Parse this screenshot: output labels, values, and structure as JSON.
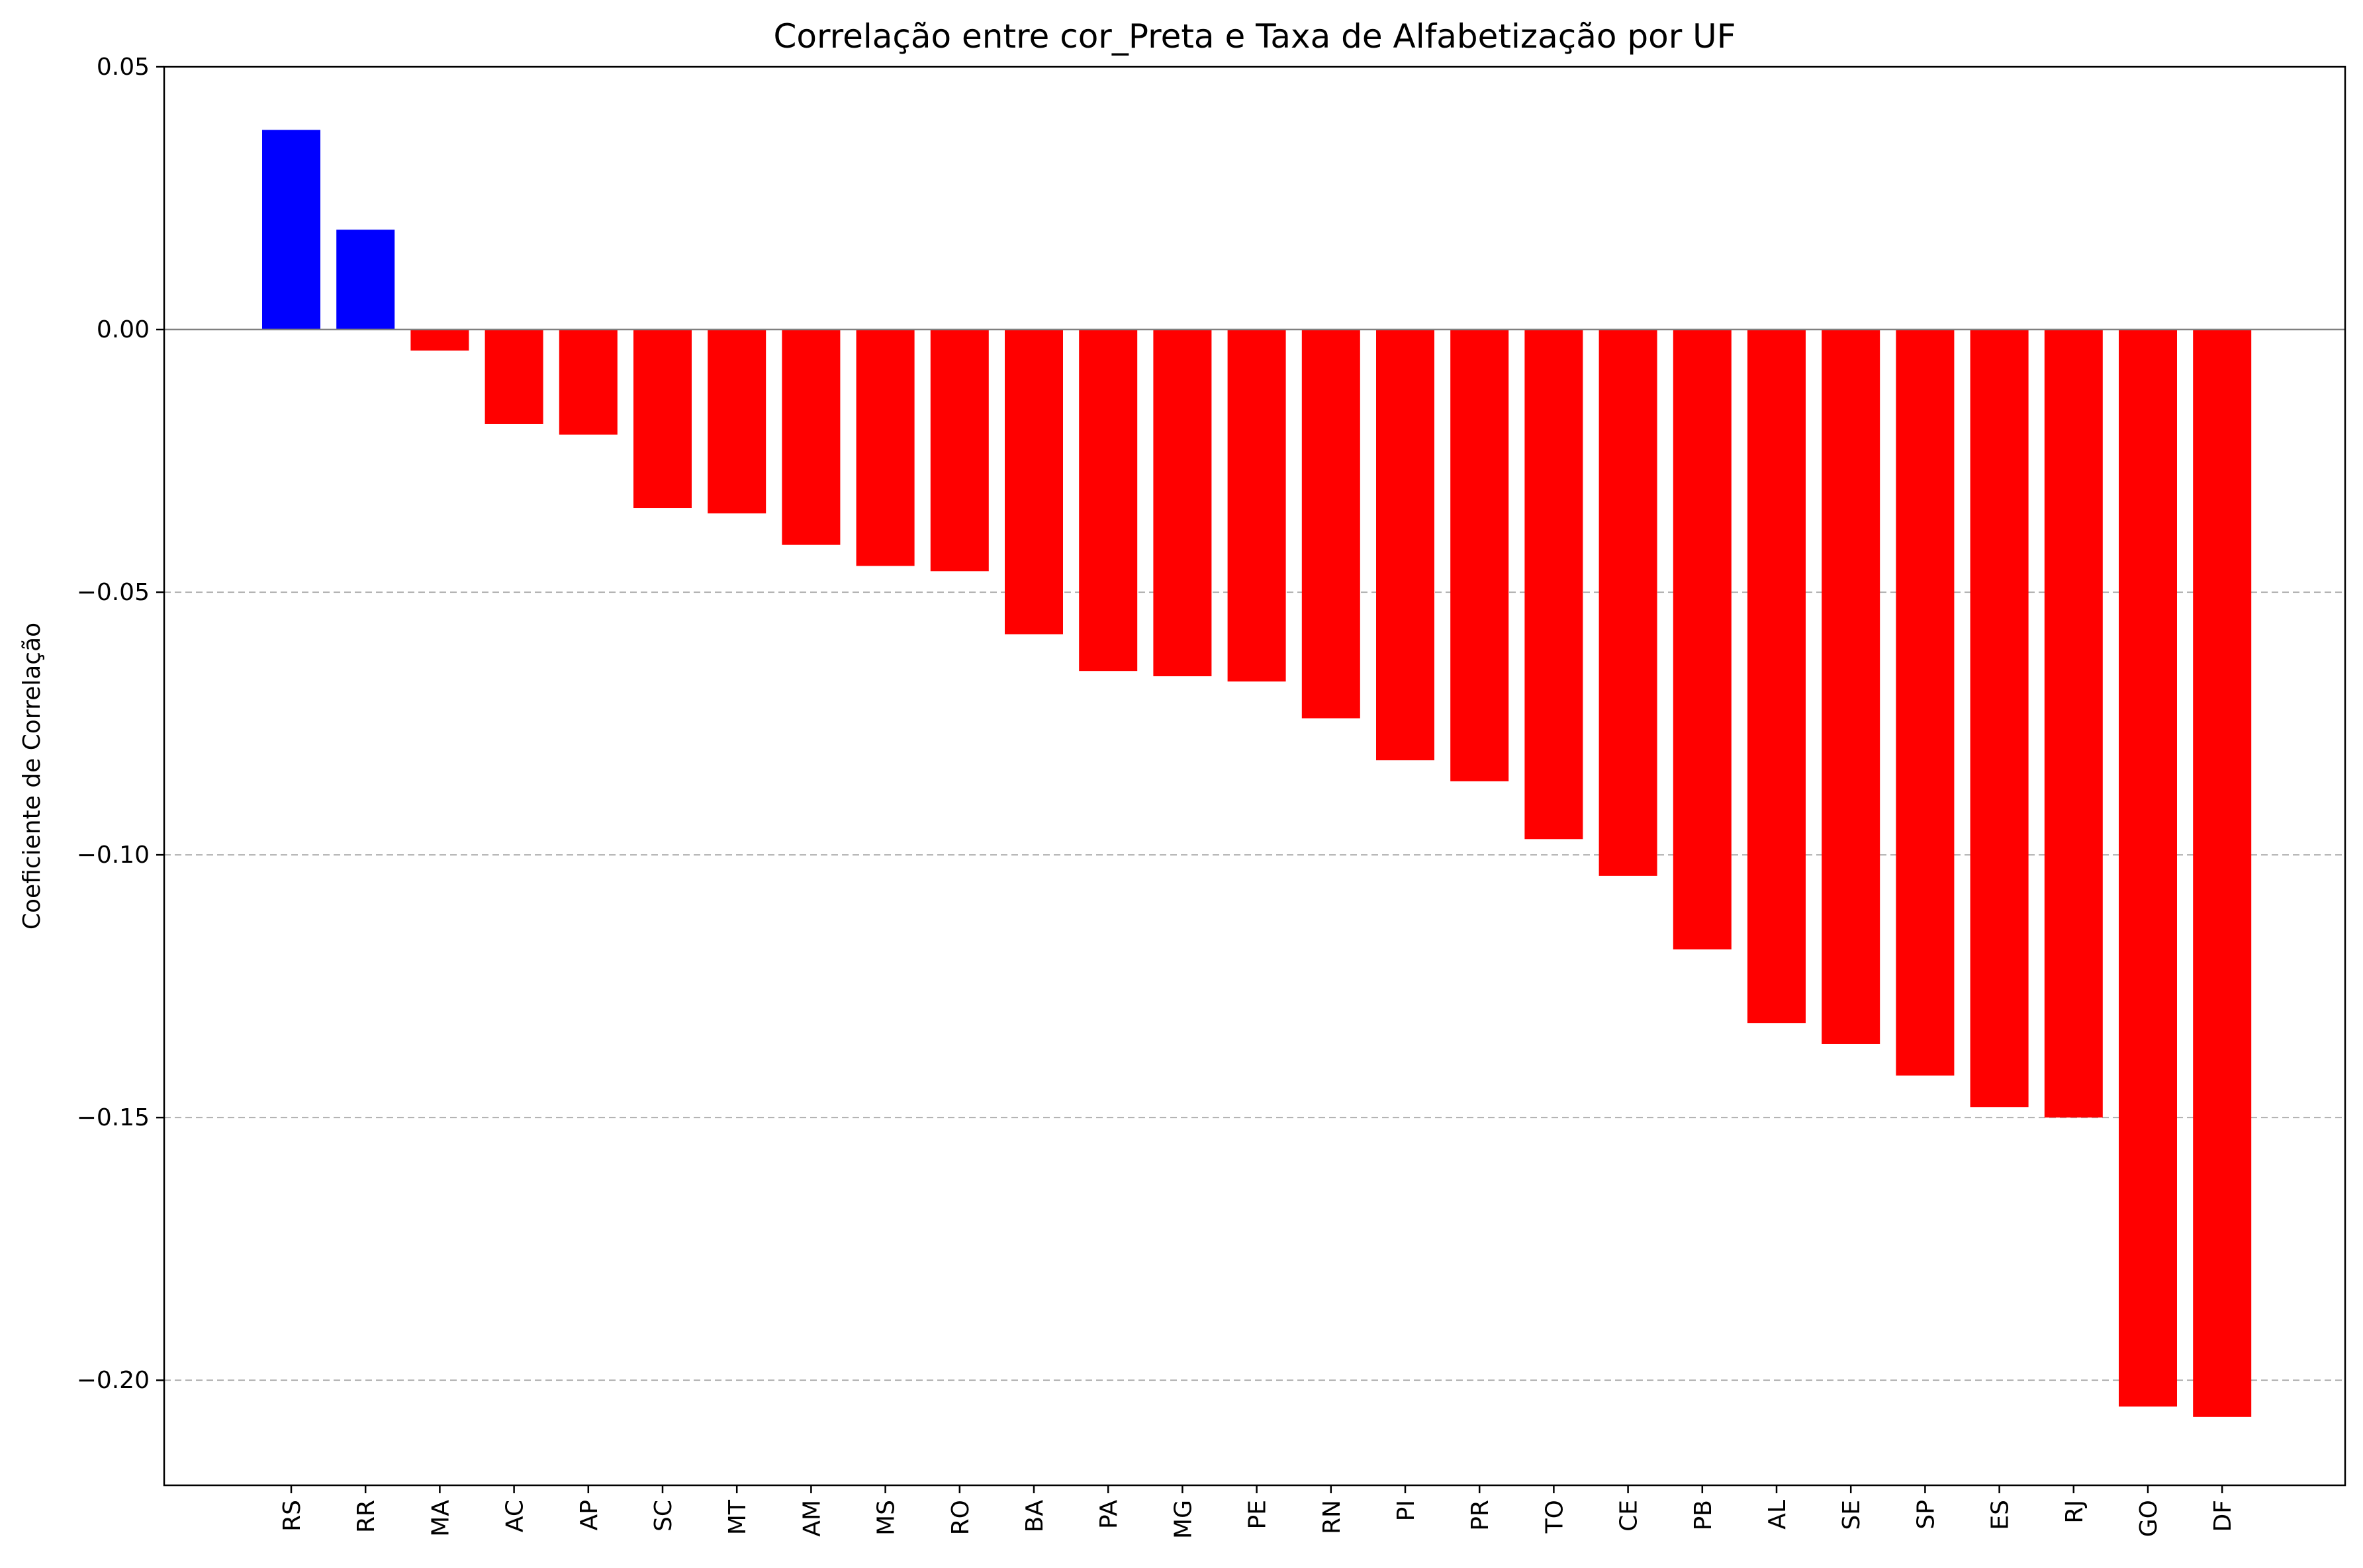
{
  "chart_data": {
    "type": "bar",
    "title": "Correlação entre cor_Preta e Taxa de Alfabetização por UF",
    "xlabel": "",
    "ylabel": "Coeficiente de Correlação",
    "categories": [
      "RS",
      "RR",
      "MA",
      "AC",
      "AP",
      "SC",
      "MT",
      "AM",
      "MS",
      "RO",
      "BA",
      "PA",
      "MG",
      "PE",
      "RN",
      "PI",
      "PR",
      "TO",
      "CE",
      "PB",
      "AL",
      "SE",
      "SP",
      "ES",
      "RJ",
      "GO",
      "DF"
    ],
    "values": [
      0.038,
      0.019,
      -0.004,
      -0.018,
      -0.02,
      -0.034,
      -0.035,
      -0.041,
      -0.045,
      -0.046,
      -0.058,
      -0.065,
      -0.066,
      -0.067,
      -0.074,
      -0.082,
      -0.086,
      -0.097,
      -0.104,
      -0.118,
      -0.132,
      -0.136,
      -0.142,
      -0.148,
      -0.15,
      -0.205,
      -0.207
    ],
    "ylim": [
      -0.22,
      0.05
    ],
    "yticks": [
      0.05,
      0.0,
      -0.05,
      -0.1,
      -0.15,
      -0.2
    ],
    "ytick_labels": [
      "0.05",
      "0.00",
      "−0.05",
      "−0.10",
      "−0.15",
      "−0.20"
    ],
    "grid": "y dashed",
    "colors": {
      "positive": "#0000ff",
      "negative": "#ff0000",
      "zero_line": "#808080",
      "grid": "#b0b0b0"
    }
  }
}
